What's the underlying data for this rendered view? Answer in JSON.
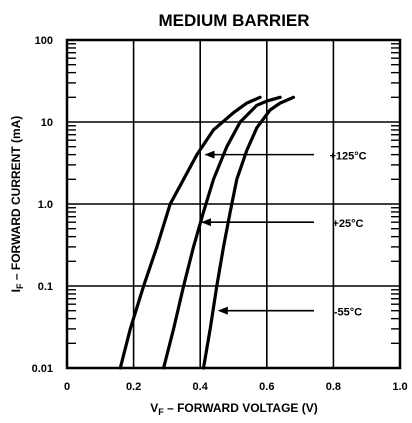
{
  "chart_data": {
    "type": "line",
    "title": "MEDIUM BARRIER",
    "xlabel_main": "V",
    "xlabel_sub": "F",
    "xlabel_rest": " – FORWARD VOLTAGE (V)",
    "ylabel_main": "I",
    "ylabel_sub": "F",
    "ylabel_rest": " – FORWARD CURRENT (mA)",
    "xscale": "linear",
    "yscale": "log",
    "xlim": [
      0,
      1.0
    ],
    "ylim": [
      0.01,
      100
    ],
    "xticks": [
      0,
      0.2,
      0.4,
      0.6,
      0.8,
      1.0
    ],
    "xtick_labels": [
      "0",
      "0.2",
      "0.4",
      "0.6",
      "0.8",
      "1.0"
    ],
    "yticks": [
      0.01,
      0.1,
      1.0,
      10,
      100
    ],
    "ytick_labels": [
      "0.01",
      "0.1",
      "1.0",
      "10",
      "100"
    ],
    "grid": true,
    "series": [
      {
        "name": "+125°C",
        "x": [
          0.16,
          0.19,
          0.23,
          0.27,
          0.31,
          0.35,
          0.39,
          0.44,
          0.5,
          0.54,
          0.58
        ],
        "y": [
          0.01,
          0.03,
          0.1,
          0.3,
          1.0,
          2.0,
          4.0,
          8.0,
          13,
          17,
          20
        ]
      },
      {
        "name": "+25°C",
        "x": [
          0.29,
          0.32,
          0.35,
          0.38,
          0.41,
          0.44,
          0.48,
          0.52,
          0.57,
          0.6,
          0.64
        ],
        "y": [
          0.01,
          0.03,
          0.1,
          0.3,
          0.8,
          2.0,
          5.0,
          10,
          16,
          18,
          20
        ]
      },
      {
        "name": "-55°C",
        "x": [
          0.41,
          0.43,
          0.45,
          0.47,
          0.49,
          0.51,
          0.54,
          0.57,
          0.61,
          0.64,
          0.68
        ],
        "y": [
          0.01,
          0.03,
          0.1,
          0.3,
          0.8,
          2.0,
          4.5,
          8.5,
          14,
          17,
          20
        ]
      }
    ],
    "annotations": [
      {
        "text": "+125°C",
        "arrow_to": [
          0.41,
          4.0
        ]
      },
      {
        "text": "+25°C",
        "arrow_to": [
          0.4,
          0.6
        ]
      },
      {
        "text": "-55°C",
        "arrow_to": [
          0.45,
          0.05
        ]
      }
    ],
    "colors": {
      "line": "#000000",
      "grid": "#000000",
      "background": "#ffffff"
    }
  }
}
